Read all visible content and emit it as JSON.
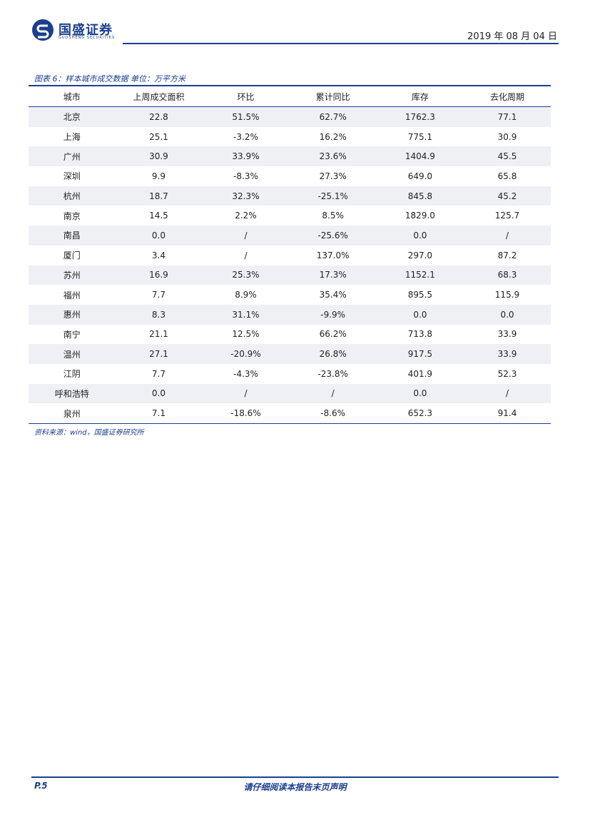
{
  "header": {
    "logo_text": "国盛证券",
    "logo_sub": "GUOSHENG SECURITIES",
    "date": "2019 年 08 月 04 日"
  },
  "table": {
    "title": "图表 6：样本城市成交数据 单位：万平方米",
    "columns": [
      "城市",
      "上周成交面积",
      "环比",
      "累计同比",
      "库存",
      "去化周期"
    ],
    "rows": [
      [
        "北京",
        "22.8",
        "51.5%",
        "62.7%",
        "1762.3",
        "77.1"
      ],
      [
        "上海",
        "25.1",
        "-3.2%",
        "16.2%",
        "775.1",
        "30.9"
      ],
      [
        "广州",
        "30.9",
        "33.9%",
        "23.6%",
        "1404.9",
        "45.5"
      ],
      [
        "深圳",
        "9.9",
        "-8.3%",
        "27.3%",
        "649.0",
        "65.8"
      ],
      [
        "杭州",
        "18.7",
        "32.3%",
        "-25.1%",
        "845.8",
        "45.2"
      ],
      [
        "南京",
        "14.5",
        "2.2%",
        "8.5%",
        "1829.0",
        "125.7"
      ],
      [
        "南昌",
        "0.0",
        "/",
        "-25.6%",
        "0.0",
        "/"
      ],
      [
        "厦门",
        "3.4",
        "/",
        "137.0%",
        "297.0",
        "87.2"
      ],
      [
        "苏州",
        "16.9",
        "25.3%",
        "17.3%",
        "1152.1",
        "68.3"
      ],
      [
        "福州",
        "7.7",
        "8.9%",
        "35.4%",
        "895.5",
        "115.9"
      ],
      [
        "惠州",
        "8.3",
        "31.1%",
        "-9.9%",
        "0.0",
        "0.0"
      ],
      [
        "南宁",
        "21.1",
        "12.5%",
        "66.2%",
        "713.8",
        "33.9"
      ],
      [
        "温州",
        "27.1",
        "-20.9%",
        "26.8%",
        "917.5",
        "33.9"
      ],
      [
        "江阴",
        "7.7",
        "-4.3%",
        "-23.8%",
        "401.9",
        "52.3"
      ],
      [
        "呼和浩特",
        "0.0",
        "/",
        "/",
        "0.0",
        "/"
      ],
      [
        "泉州",
        "7.1",
        "-18.6%",
        "-8.6%",
        "652.3",
        "91.4"
      ]
    ],
    "source": "资料来源：wind，国盛证券研究所"
  },
  "footer": {
    "page": "P.5",
    "note": "请仔细阅读本报告末页声明"
  }
}
